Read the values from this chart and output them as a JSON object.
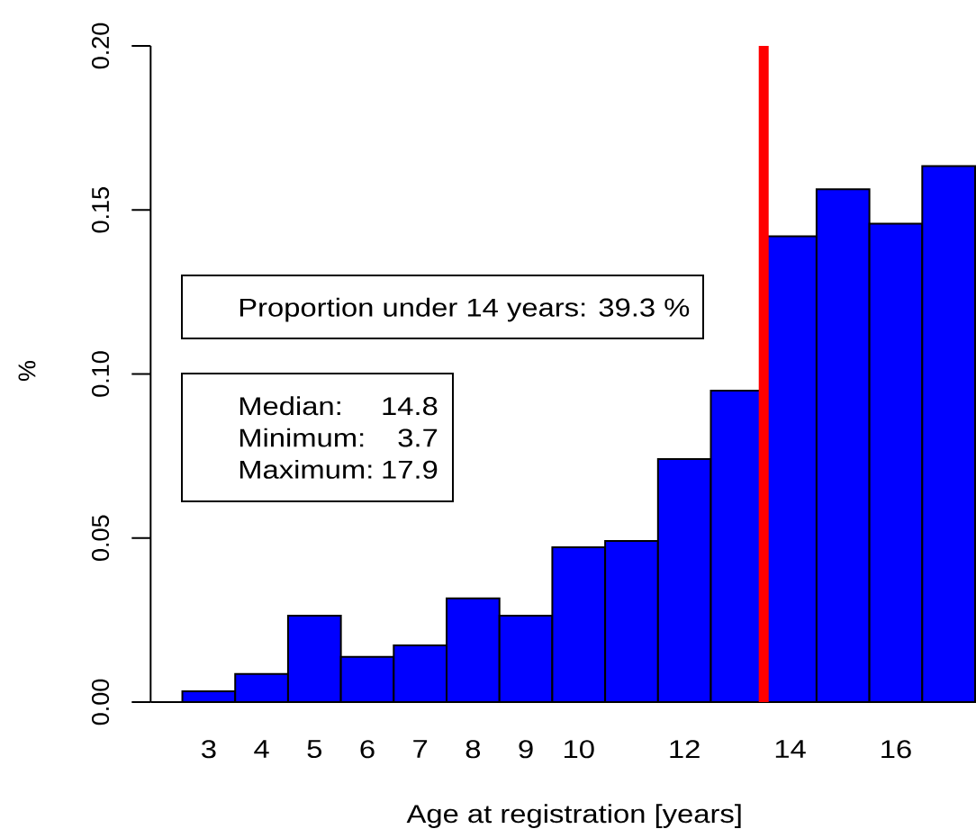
{
  "chart_data": {
    "type": "histogram",
    "xlabel": "Age at registration [years]",
    "ylabel": "%",
    "bins": [
      2.5,
      3.5,
      4.5,
      5.5,
      6.5,
      7.5,
      8.5,
      9.5,
      10.5,
      11.5,
      12.5,
      13.5,
      14.5,
      15.5,
      16.5,
      17.5
    ],
    "values": [
      0.0033,
      0.0086,
      0.0263,
      0.0138,
      0.0173,
      0.0316,
      0.0263,
      0.0472,
      0.0491,
      0.0741,
      0.0949,
      0.142,
      0.1563,
      0.1458,
      0.1634
    ],
    "color": "#0000ff",
    "xlim": [
      1.9,
      17.5
    ],
    "ylim": [
      0,
      0.2
    ],
    "xticks": [
      3,
      4,
      5,
      6,
      7,
      8,
      9,
      10,
      12,
      14,
      16
    ],
    "yticks": [
      {
        "value": 0,
        "label": "0.00"
      },
      {
        "value": 0.05,
        "label": "0.05"
      },
      {
        "value": 0.1,
        "label": "0.10"
      },
      {
        "value": 0.15,
        "label": "0.15"
      },
      {
        "value": 0.2,
        "label": "0.20"
      }
    ],
    "ref_lines": [
      {
        "axis": "x",
        "value": 13.5,
        "color": "#ff0000"
      }
    ],
    "annotations": [
      "Proportion under 14 years: 39.3 %",
      "Median:",
      "14.8",
      "Minimum:",
      "3.7",
      "Maximum:",
      "17.9"
    ]
  }
}
